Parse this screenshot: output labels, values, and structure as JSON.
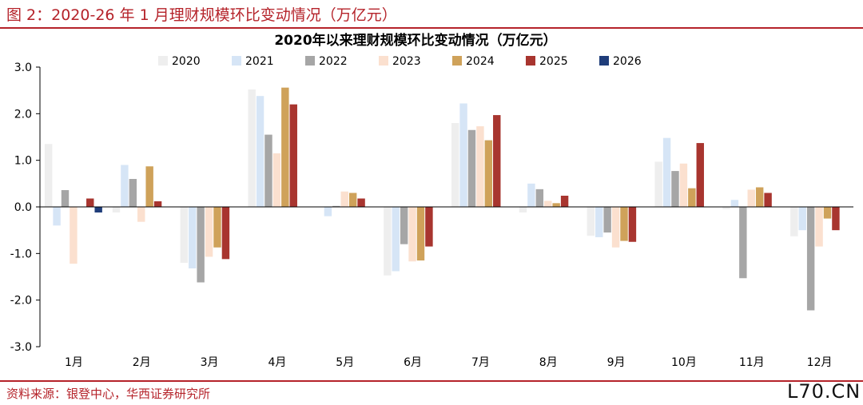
{
  "figure_title": "图 2：2020-26 年 1 月理财规模环比变动情况（万亿元）",
  "source_note": "资料来源：银登中心，华西证券研究所",
  "watermark": "L70.CN",
  "colors": {
    "accent": "#b5232a",
    "series": {
      "2020": "#eeeeee",
      "2021": "#d6e5f6",
      "2022": "#a6a6a6",
      "2023": "#fbe0cf",
      "2024": "#cfa25a",
      "2025": "#a8352f",
      "2026": "#1f3d7a"
    }
  },
  "chart_data": {
    "type": "bar",
    "title": "2020年以来理财规模环比变动情况（万亿元）",
    "xlabel": "",
    "ylabel": "",
    "ylim": [
      -3.0,
      3.0
    ],
    "yticks": [
      3.0,
      2.0,
      1.0,
      0.0,
      -1.0,
      -2.0,
      -3.0
    ],
    "ytick_labels": [
      "3.0",
      "2.0",
      "1.0",
      "0.0",
      "-1.0",
      "-2.0",
      "-3.0"
    ],
    "categories": [
      "1月",
      "2月",
      "3月",
      "4月",
      "5月",
      "6月",
      "7月",
      "8月",
      "9月",
      "10月",
      "11月",
      "12月"
    ],
    "legend_position": "top",
    "grid": false,
    "series": [
      {
        "name": "2020",
        "values": [
          1.35,
          -0.12,
          -1.2,
          2.52,
          0.0,
          -1.47,
          1.8,
          -0.12,
          -0.62,
          0.97,
          -0.05,
          -0.63
        ]
      },
      {
        "name": "2021",
        "values": [
          -0.4,
          0.9,
          -1.32,
          2.38,
          -0.2,
          -1.38,
          2.22,
          0.5,
          -0.65,
          1.48,
          0.15,
          -0.5
        ]
      },
      {
        "name": "2022",
        "values": [
          0.36,
          0.6,
          -1.62,
          1.55,
          0.02,
          -0.8,
          1.65,
          0.38,
          -0.55,
          0.77,
          -1.53,
          -2.22
        ]
      },
      {
        "name": "2023",
        "values": [
          -1.22,
          -0.32,
          -1.07,
          1.15,
          0.33,
          -1.17,
          1.73,
          0.13,
          -0.87,
          0.93,
          0.37,
          -0.85
        ]
      },
      {
        "name": "2024",
        "values": [
          0.0,
          0.87,
          -0.87,
          2.56,
          0.3,
          -1.15,
          1.43,
          0.08,
          -0.73,
          0.4,
          0.42,
          -0.25
        ]
      },
      {
        "name": "2025",
        "values": [
          0.18,
          0.12,
          -1.12,
          2.2,
          0.18,
          -0.85,
          1.97,
          0.24,
          -0.75,
          1.37,
          0.3,
          -0.5
        ]
      },
      {
        "name": "2026",
        "values": [
          -0.12,
          null,
          null,
          null,
          null,
          null,
          null,
          null,
          null,
          null,
          null,
          null
        ]
      }
    ]
  }
}
